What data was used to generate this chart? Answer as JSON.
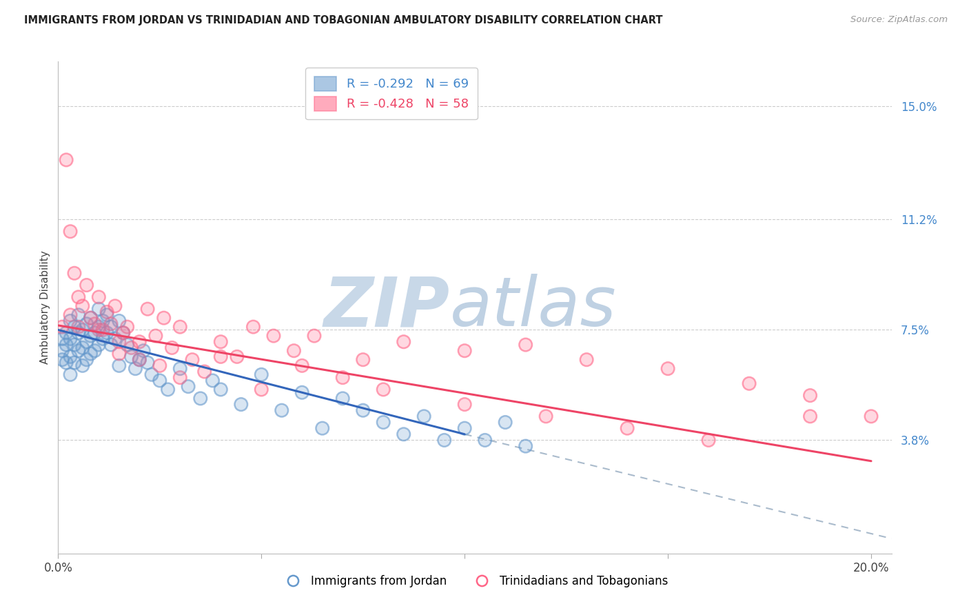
{
  "title": "IMMIGRANTS FROM JORDAN VS TRINIDADIAN AND TOBAGONIAN AMBULATORY DISABILITY CORRELATION CHART",
  "source": "Source: ZipAtlas.com",
  "ylabel": "Ambulatory Disability",
  "ytick_labels": [
    "15.0%",
    "11.2%",
    "7.5%",
    "3.8%"
  ],
  "ytick_values": [
    0.15,
    0.112,
    0.075,
    0.038
  ],
  "xlim": [
    0.0,
    0.205
  ],
  "ylim": [
    0.0,
    0.165
  ],
  "color_blue": "#6699CC",
  "color_pink": "#FF6688",
  "color_dashed": "#AABBCC",
  "jordan_x": [
    0.001,
    0.001,
    0.001,
    0.002,
    0.002,
    0.002,
    0.003,
    0.003,
    0.003,
    0.003,
    0.004,
    0.004,
    0.004,
    0.005,
    0.005,
    0.005,
    0.006,
    0.006,
    0.006,
    0.007,
    0.007,
    0.007,
    0.008,
    0.008,
    0.008,
    0.009,
    0.009,
    0.01,
    0.01,
    0.01,
    0.011,
    0.011,
    0.012,
    0.012,
    0.013,
    0.013,
    0.014,
    0.015,
    0.015,
    0.016,
    0.017,
    0.018,
    0.019,
    0.02,
    0.021,
    0.022,
    0.023,
    0.025,
    0.027,
    0.03,
    0.032,
    0.035,
    0.038,
    0.04,
    0.045,
    0.05,
    0.055,
    0.06,
    0.065,
    0.07,
    0.075,
    0.08,
    0.085,
    0.09,
    0.095,
    0.1,
    0.105,
    0.11,
    0.115
  ],
  "jordan_y": [
    0.072,
    0.068,
    0.065,
    0.074,
    0.07,
    0.064,
    0.078,
    0.072,
    0.066,
    0.06,
    0.076,
    0.07,
    0.064,
    0.08,
    0.074,
    0.068,
    0.075,
    0.069,
    0.063,
    0.077,
    0.071,
    0.065,
    0.079,
    0.073,
    0.067,
    0.074,
    0.068,
    0.082,
    0.076,
    0.07,
    0.078,
    0.072,
    0.08,
    0.074,
    0.076,
    0.07,
    0.072,
    0.078,
    0.063,
    0.074,
    0.07,
    0.066,
    0.062,
    0.065,
    0.068,
    0.064,
    0.06,
    0.058,
    0.055,
    0.062,
    0.056,
    0.052,
    0.058,
    0.055,
    0.05,
    0.06,
    0.048,
    0.054,
    0.042,
    0.052,
    0.048,
    0.044,
    0.04,
    0.046,
    0.038,
    0.042,
    0.038,
    0.044,
    0.036
  ],
  "trini_x": [
    0.001,
    0.002,
    0.003,
    0.003,
    0.004,
    0.005,
    0.005,
    0.006,
    0.007,
    0.008,
    0.009,
    0.01,
    0.011,
    0.012,
    0.013,
    0.014,
    0.015,
    0.016,
    0.017,
    0.018,
    0.02,
    0.022,
    0.024,
    0.026,
    0.028,
    0.03,
    0.033,
    0.036,
    0.04,
    0.044,
    0.048,
    0.053,
    0.058,
    0.063,
    0.075,
    0.085,
    0.1,
    0.115,
    0.13,
    0.15,
    0.17,
    0.185,
    0.2,
    0.01,
    0.015,
    0.02,
    0.025,
    0.03,
    0.04,
    0.05,
    0.06,
    0.07,
    0.08,
    0.1,
    0.12,
    0.14,
    0.16,
    0.185
  ],
  "trini_y": [
    0.076,
    0.132,
    0.108,
    0.08,
    0.094,
    0.086,
    0.076,
    0.083,
    0.09,
    0.079,
    0.077,
    0.086,
    0.075,
    0.081,
    0.077,
    0.083,
    0.071,
    0.074,
    0.076,
    0.069,
    0.065,
    0.082,
    0.073,
    0.079,
    0.069,
    0.076,
    0.065,
    0.061,
    0.071,
    0.066,
    0.076,
    0.073,
    0.068,
    0.073,
    0.065,
    0.071,
    0.068,
    0.07,
    0.065,
    0.062,
    0.057,
    0.053,
    0.046,
    0.075,
    0.067,
    0.071,
    0.063,
    0.059,
    0.066,
    0.055,
    0.063,
    0.059,
    0.055,
    0.05,
    0.046,
    0.042,
    0.038,
    0.046
  ],
  "jordan_line_x": [
    0.0,
    0.1
  ],
  "jordan_line_y": [
    0.075,
    0.04
  ],
  "trini_line_x": [
    0.0,
    0.2
  ],
  "trini_line_y": [
    0.0765,
    0.031
  ],
  "dashed_line_x": [
    0.1,
    0.205
  ],
  "dashed_line_y": [
    0.04,
    0.005
  ]
}
